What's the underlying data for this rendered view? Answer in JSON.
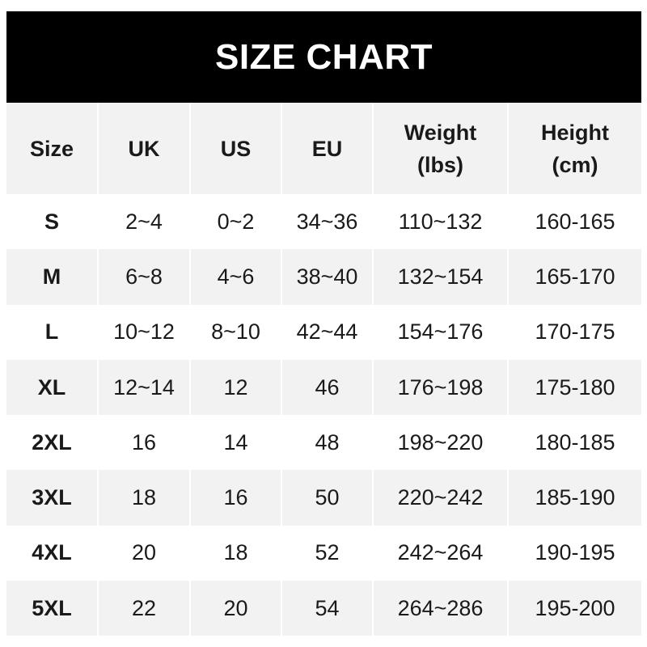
{
  "title": "SIZE CHART",
  "columns": [
    {
      "line1": "Size",
      "line2": ""
    },
    {
      "line1": "UK",
      "line2": ""
    },
    {
      "line1": "US",
      "line2": ""
    },
    {
      "line1": "EU",
      "line2": ""
    },
    {
      "line1": "Weight",
      "line2": "(lbs)"
    },
    {
      "line1": "Height",
      "line2": "(cm)"
    }
  ],
  "rows": [
    [
      "S",
      "2~4",
      "0~2",
      "34~36",
      "110~132",
      "160-165"
    ],
    [
      "M",
      "6~8",
      "4~6",
      "38~40",
      "132~154",
      "165-170"
    ],
    [
      "L",
      "10~12",
      "8~10",
      "42~44",
      "154~176",
      "170-175"
    ],
    [
      "XL",
      "12~14",
      "12",
      "46",
      "176~198",
      "175-180"
    ],
    [
      "2XL",
      "16",
      "14",
      "48",
      "198~220",
      "180-185"
    ],
    [
      "3XL",
      "18",
      "16",
      "50",
      "220~242",
      "185-190"
    ],
    [
      "4XL",
      "20",
      "18",
      "52",
      "242~264",
      "190-195"
    ],
    [
      "5XL",
      "22",
      "20",
      "54",
      "264~286",
      "195-200"
    ]
  ],
  "colors": {
    "banner": "#000000",
    "stripe": "#f2f2f2",
    "text": "#1a1a1a"
  }
}
